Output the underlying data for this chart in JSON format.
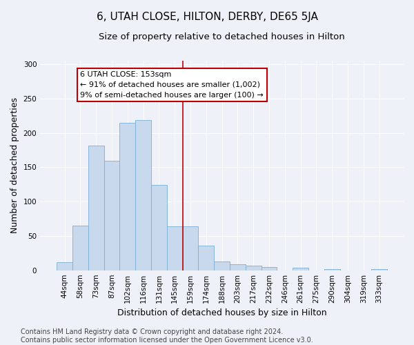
{
  "title": "6, UTAH CLOSE, HILTON, DERBY, DE65 5JA",
  "subtitle": "Size of property relative to detached houses in Hilton",
  "xlabel": "Distribution of detached houses by size in Hilton",
  "ylabel": "Number of detached properties",
  "bar_labels": [
    "44sqm",
    "58sqm",
    "73sqm",
    "87sqm",
    "102sqm",
    "116sqm",
    "131sqm",
    "145sqm",
    "159sqm",
    "174sqm",
    "188sqm",
    "203sqm",
    "217sqm",
    "232sqm",
    "246sqm",
    "261sqm",
    "275sqm",
    "290sqm",
    "304sqm",
    "319sqm",
    "333sqm"
  ],
  "bar_values": [
    12,
    65,
    181,
    159,
    215,
    219,
    124,
    64,
    64,
    36,
    13,
    9,
    7,
    5,
    0,
    4,
    0,
    2,
    0,
    0,
    2
  ],
  "bar_color": "#c8d9ee",
  "bar_edge_color": "#7aafd4",
  "vline_index": 8,
  "vline_color": "#c00000",
  "annotation_text": "6 UTAH CLOSE: 153sqm\n← 91% of detached houses are smaller (1,002)\n9% of semi-detached houses are larger (100) →",
  "annotation_box_color": "#ffffff",
  "annotation_box_edge_color": "#c00000",
  "footnote": "Contains HM Land Registry data © Crown copyright and database right 2024.\nContains public sector information licensed under the Open Government Licence v3.0.",
  "ylim": [
    0,
    305
  ],
  "title_fontsize": 11,
  "subtitle_fontsize": 9.5,
  "ylabel_fontsize": 9,
  "xlabel_fontsize": 9,
  "tick_fontsize": 7.5,
  "annot_fontsize": 8,
  "footnote_fontsize": 7,
  "background_color": "#eef2f8"
}
